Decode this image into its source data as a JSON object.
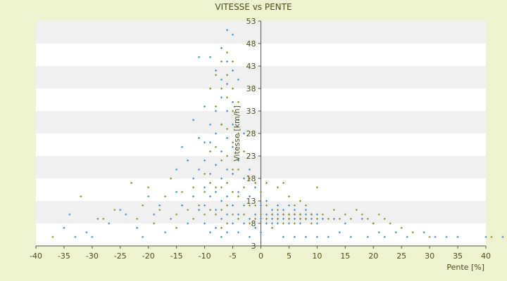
{
  "chart_data": {
    "type": "scatter",
    "title": "VITESSE vs PENTE",
    "xlabel": "Pente [%]",
    "ylabel": "Vitesse [km/h]",
    "xlim": [
      -40,
      40
    ],
    "ylim": [
      3,
      53
    ],
    "x_ticks": [
      -40,
      -35,
      -30,
      -25,
      -20,
      -15,
      -10,
      -5,
      0,
      5,
      10,
      15,
      20,
      25,
      30,
      35,
      40
    ],
    "y_ticks": [
      3,
      8,
      13,
      18,
      23,
      28,
      33,
      38,
      43,
      48,
      53
    ],
    "grid": "horizontal bands",
    "legend": "none",
    "series": [
      {
        "color": "#3a86c8",
        "points": [
          [
            -35,
            7
          ],
          [
            -34,
            10
          ],
          [
            -33,
            5
          ],
          [
            -31,
            6
          ],
          [
            -30,
            5
          ],
          [
            -29,
            9
          ],
          [
            -27,
            8
          ],
          [
            -25,
            11
          ],
          [
            -24,
            10
          ],
          [
            -22,
            7
          ],
          [
            -21,
            5
          ],
          [
            -20,
            14
          ],
          [
            -19,
            10
          ],
          [
            -18,
            12
          ],
          [
            -17,
            6
          ],
          [
            -16,
            9
          ],
          [
            -15,
            20
          ],
          [
            -15,
            15
          ],
          [
            -14,
            25
          ],
          [
            -14,
            12
          ],
          [
            -13,
            22
          ],
          [
            -13,
            8
          ],
          [
            -12,
            31
          ],
          [
            -12,
            18
          ],
          [
            -12,
            14
          ],
          [
            -11,
            45
          ],
          [
            -11,
            27
          ],
          [
            -11,
            20
          ],
          [
            -11,
            11
          ],
          [
            -10,
            34
          ],
          [
            -10,
            26
          ],
          [
            -10,
            22
          ],
          [
            -10,
            16
          ],
          [
            -10,
            12
          ],
          [
            -10,
            8
          ],
          [
            -9,
            45
          ],
          [
            -9,
            38
          ],
          [
            -9,
            30
          ],
          [
            -9,
            26
          ],
          [
            -9,
            19
          ],
          [
            -9,
            14
          ],
          [
            -9,
            6
          ],
          [
            -8,
            42
          ],
          [
            -8,
            33
          ],
          [
            -8,
            28
          ],
          [
            -8,
            21
          ],
          [
            -8,
            15
          ],
          [
            -8,
            11
          ],
          [
            -8,
            7
          ],
          [
            -7,
            47
          ],
          [
            -7,
            40
          ],
          [
            -7,
            36
          ],
          [
            -7,
            30
          ],
          [
            -7,
            24
          ],
          [
            -7,
            18
          ],
          [
            -7,
            13
          ],
          [
            -7,
            9
          ],
          [
            -7,
            5
          ],
          [
            -6,
            51
          ],
          [
            -6,
            44
          ],
          [
            -6,
            39
          ],
          [
            -6,
            33
          ],
          [
            -6,
            27
          ],
          [
            -6,
            20
          ],
          [
            -6,
            14
          ],
          [
            -6,
            10
          ],
          [
            -6,
            6
          ],
          [
            -5,
            50
          ],
          [
            -5,
            42
          ],
          [
            -5,
            35
          ],
          [
            -5,
            30
          ],
          [
            -5,
            25
          ],
          [
            -5,
            19
          ],
          [
            -5,
            12
          ],
          [
            -5,
            8
          ],
          [
            -4,
            40
          ],
          [
            -4,
            31
          ],
          [
            -4,
            22
          ],
          [
            -4,
            15
          ],
          [
            -4,
            10
          ],
          [
            -4,
            6
          ],
          [
            -3,
            28
          ],
          [
            -3,
            18
          ],
          [
            -3,
            12
          ],
          [
            -3,
            8
          ],
          [
            -2,
            20
          ],
          [
            -2,
            14
          ],
          [
            -2,
            9
          ],
          [
            -2,
            5
          ],
          [
            -1,
            16
          ],
          [
            -1,
            10
          ],
          [
            -1,
            7
          ],
          [
            0,
            12
          ],
          [
            0,
            9
          ],
          [
            0,
            6
          ],
          [
            1,
            13
          ],
          [
            1,
            10
          ],
          [
            1,
            9
          ],
          [
            1,
            8
          ],
          [
            2,
            11
          ],
          [
            2,
            10
          ],
          [
            2,
            9
          ],
          [
            2,
            8
          ],
          [
            3,
            12
          ],
          [
            3,
            10
          ],
          [
            3,
            9
          ],
          [
            3,
            8
          ],
          [
            4,
            11
          ],
          [
            4,
            10
          ],
          [
            4,
            9
          ],
          [
            4,
            5
          ],
          [
            5,
            12
          ],
          [
            5,
            10
          ],
          [
            5,
            9
          ],
          [
            5,
            8
          ],
          [
            6,
            11
          ],
          [
            6,
            10
          ],
          [
            6,
            9
          ],
          [
            6,
            5
          ],
          [
            7,
            10
          ],
          [
            7,
            9
          ],
          [
            7,
            8
          ],
          [
            8,
            11
          ],
          [
            8,
            10
          ],
          [
            8,
            9
          ],
          [
            8,
            5
          ],
          [
            9,
            10
          ],
          [
            9,
            9
          ],
          [
            10,
            10
          ],
          [
            10,
            8
          ],
          [
            10,
            5
          ],
          [
            11,
            9
          ],
          [
            12,
            5
          ],
          [
            13,
            9
          ],
          [
            14,
            6
          ],
          [
            15,
            8
          ],
          [
            16,
            5
          ],
          [
            18,
            9
          ],
          [
            19,
            5
          ],
          [
            20,
            8
          ],
          [
            21,
            6
          ],
          [
            22,
            5
          ],
          [
            24,
            6
          ],
          [
            26,
            5
          ],
          [
            29,
            6
          ],
          [
            31,
            5
          ],
          [
            33,
            5
          ],
          [
            35,
            5
          ],
          [
            40,
            5
          ],
          [
            43,
            5
          ]
        ]
      },
      {
        "color": "#8a8a1e",
        "points": [
          [
            -37,
            5
          ],
          [
            -32,
            14
          ],
          [
            -28,
            9
          ],
          [
            -26,
            11
          ],
          [
            -23,
            17
          ],
          [
            -22,
            9
          ],
          [
            -21,
            12
          ],
          [
            -20,
            16
          ],
          [
            -19,
            8
          ],
          [
            -18,
            11
          ],
          [
            -17,
            14
          ],
          [
            -16,
            18
          ],
          [
            -15,
            10
          ],
          [
            -15,
            7
          ],
          [
            -14,
            15
          ],
          [
            -13,
            11
          ],
          [
            -12,
            16
          ],
          [
            -12,
            9
          ],
          [
            -11,
            12
          ],
          [
            -10,
            19
          ],
          [
            -10,
            15
          ],
          [
            -10,
            10
          ],
          [
            -9,
            38
          ],
          [
            -9,
            24
          ],
          [
            -9,
            17
          ],
          [
            -9,
            11
          ],
          [
            -8,
            41
          ],
          [
            -8,
            34
          ],
          [
            -8,
            25
          ],
          [
            -8,
            16
          ],
          [
            -8,
            10
          ],
          [
            -7,
            44
          ],
          [
            -7,
            38
          ],
          [
            -7,
            30
          ],
          [
            -7,
            22
          ],
          [
            -7,
            16
          ],
          [
            -7,
            11
          ],
          [
            -7,
            7
          ],
          [
            -6,
            46
          ],
          [
            -6,
            41
          ],
          [
            -6,
            36
          ],
          [
            -6,
            29
          ],
          [
            -6,
            23
          ],
          [
            -6,
            17
          ],
          [
            -6,
            12
          ],
          [
            -6,
            8
          ],
          [
            -5,
            44
          ],
          [
            -5,
            38
          ],
          [
            -5,
            33
          ],
          [
            -5,
            26
          ],
          [
            -5,
            20
          ],
          [
            -5,
            15
          ],
          [
            -5,
            10
          ],
          [
            -4,
            35
          ],
          [
            -4,
            28
          ],
          [
            -4,
            20
          ],
          [
            -4,
            14
          ],
          [
            -4,
            9
          ],
          [
            -3,
            24
          ],
          [
            -3,
            16
          ],
          [
            -3,
            10
          ],
          [
            -2,
            18
          ],
          [
            -2,
            12
          ],
          [
            -2,
            8
          ],
          [
            -1,
            17
          ],
          [
            -1,
            12
          ],
          [
            -1,
            9
          ],
          [
            0,
            15
          ],
          [
            0,
            10
          ],
          [
            1,
            17
          ],
          [
            1,
            12
          ],
          [
            1,
            9
          ],
          [
            2,
            10
          ],
          [
            2,
            7
          ],
          [
            3,
            16
          ],
          [
            3,
            11
          ],
          [
            3,
            9
          ],
          [
            4,
            17
          ],
          [
            4,
            10
          ],
          [
            4,
            8
          ],
          [
            5,
            14
          ],
          [
            5,
            10
          ],
          [
            5,
            9
          ],
          [
            6,
            12
          ],
          [
            6,
            10
          ],
          [
            6,
            8
          ],
          [
            7,
            13
          ],
          [
            7,
            10
          ],
          [
            7,
            9
          ],
          [
            8,
            12
          ],
          [
            8,
            9
          ],
          [
            9,
            10
          ],
          [
            9,
            8
          ],
          [
            10,
            16
          ],
          [
            10,
            9
          ],
          [
            11,
            10
          ],
          [
            12,
            9
          ],
          [
            13,
            11
          ],
          [
            14,
            9
          ],
          [
            15,
            10
          ],
          [
            16,
            9
          ],
          [
            17,
            11
          ],
          [
            18,
            10
          ],
          [
            19,
            9
          ],
          [
            20,
            8
          ],
          [
            21,
            10
          ],
          [
            22,
            9
          ],
          [
            23,
            8
          ],
          [
            25,
            7
          ],
          [
            27,
            6
          ],
          [
            30,
            5
          ],
          [
            41,
            5
          ]
        ]
      }
    ]
  }
}
